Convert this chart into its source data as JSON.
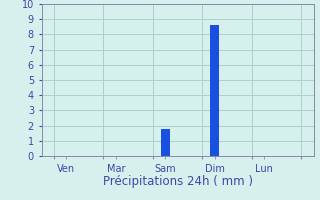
{
  "categories": [
    "Ven",
    "Mar",
    "Sam",
    "Dim",
    "Lun"
  ],
  "bar_positions": [
    0.5,
    2.5,
    4.5,
    6.5,
    8.5
  ],
  "tick_positions": [
    0,
    2,
    4,
    6,
    8,
    10
  ],
  "values": [
    0,
    0,
    1.8,
    8.6,
    0
  ],
  "bar_width": 0.35,
  "bar_color": "#1a50e0",
  "background_color": "#d6f0ee",
  "grid_color": "#aacfcc",
  "axis_color": "#8888aa",
  "text_color": "#4444aa",
  "xlabel": "Précipitations 24h ( mm )",
  "ylim": [
    0,
    10
  ],
  "yticks": [
    0,
    1,
    2,
    3,
    4,
    5,
    6,
    7,
    8,
    9,
    10
  ],
  "xlim": [
    -0.5,
    10.5
  ],
  "xlabel_fontsize": 8.5,
  "tick_fontsize": 7,
  "figsize": [
    3.2,
    2.0
  ],
  "dpi": 100
}
